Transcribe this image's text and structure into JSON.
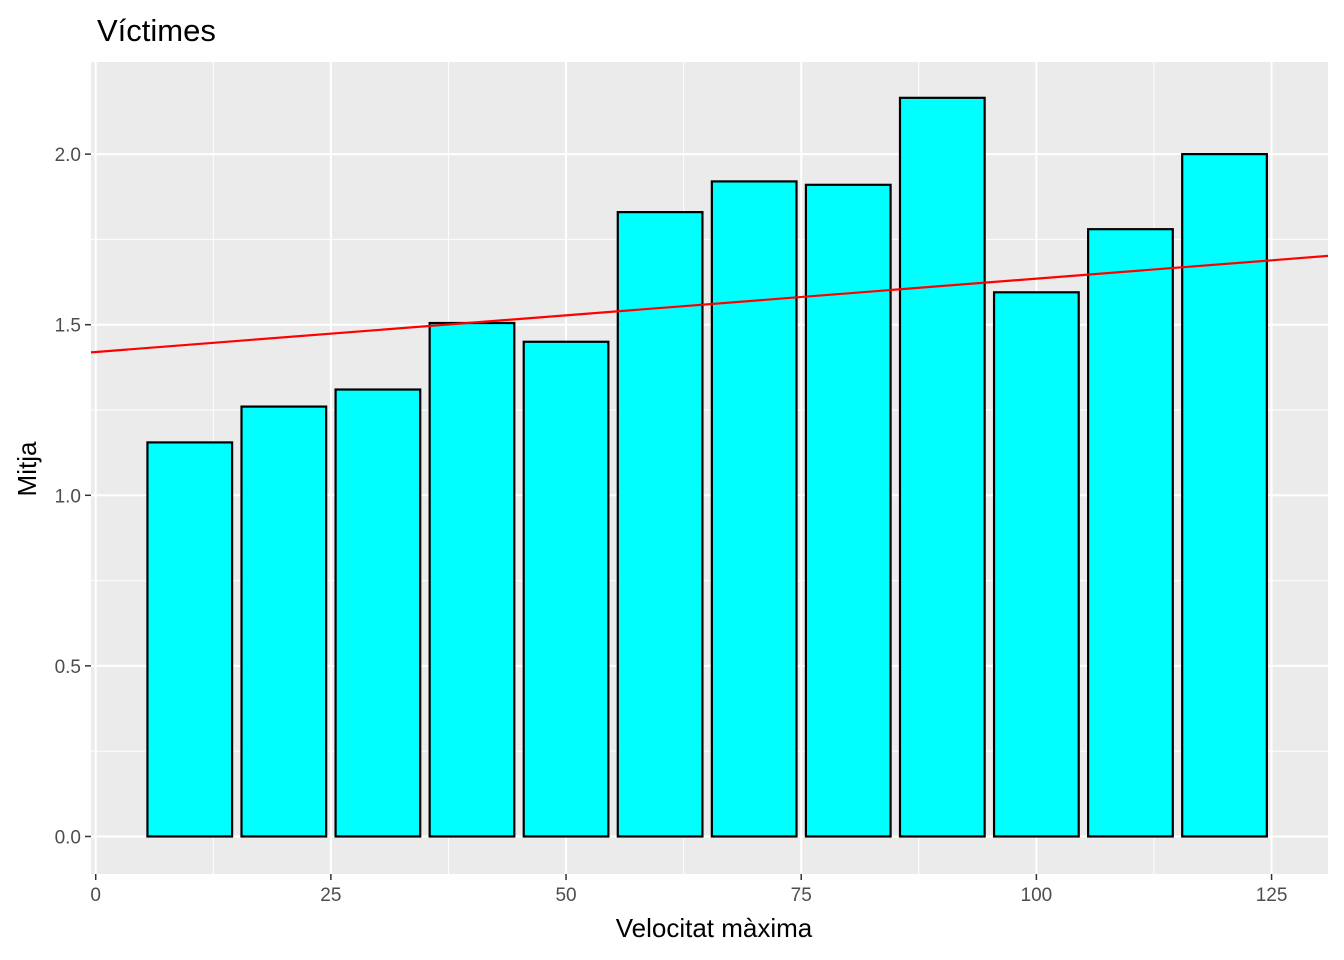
{
  "chart_data": {
    "type": "bar",
    "title": "Víctimes",
    "xlabel": "Velocitat màxima",
    "ylabel": "Mitja",
    "x": [
      10,
      20,
      30,
      40,
      50,
      60,
      70,
      80,
      90,
      100,
      110,
      120
    ],
    "values": [
      1.155,
      1.26,
      1.31,
      1.505,
      1.45,
      1.83,
      1.92,
      1.91,
      2.165,
      1.595,
      1.78,
      2.0
    ],
    "bar_width": 9,
    "xlim": [
      -0.5,
      131
    ],
    "ylim": [
      -0.11,
      2.27
    ],
    "x_ticks": [
      0,
      25,
      50,
      75,
      100,
      125
    ],
    "x_tick_labels": [
      "0",
      "25",
      "50",
      "75",
      "100",
      "125"
    ],
    "y_ticks": [
      0.0,
      0.5,
      1.0,
      1.5,
      2.0
    ],
    "y_tick_labels": [
      "0.0",
      "0.5",
      "1.0",
      "1.5",
      "2.0"
    ],
    "trend_line": {
      "intercept": 1.42,
      "slope": 0.00215
    },
    "grid": true,
    "colors": {
      "bar_fill": "#00ffff",
      "bar_stroke": "#000000",
      "trend": "#ff0000",
      "panel": "#ebebeb",
      "grid": "#ffffff"
    }
  }
}
